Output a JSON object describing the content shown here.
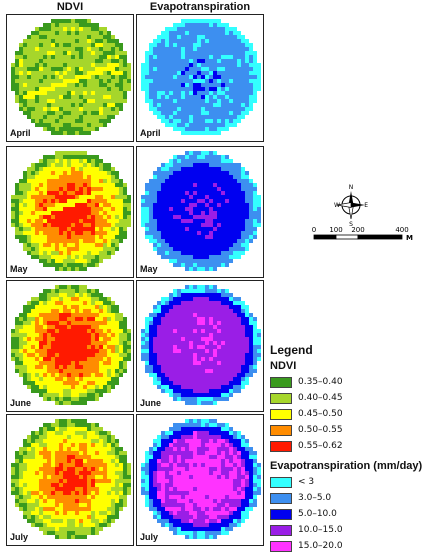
{
  "columns": {
    "ndvi": "NDVI",
    "et": "Evapotranspiration"
  },
  "months": [
    "April",
    "May",
    "June",
    "July"
  ],
  "compass": {
    "n": "N",
    "s": "S",
    "e": "E",
    "w": "W"
  },
  "scale_bar": {
    "ticks": [
      "0",
      "100",
      "200",
      "400"
    ],
    "unit": "M"
  },
  "legend": {
    "title": "Legend",
    "ndvi_title": "NDVI",
    "ndvi_classes": [
      {
        "label": "0.35–0.40",
        "color": "#3a9a1e"
      },
      {
        "label": "0.40–0.45",
        "color": "#a6d62b"
      },
      {
        "label": "0.45–0.50",
        "color": "#ffff00"
      },
      {
        "label": "0.50–0.55",
        "color": "#ff8c00"
      },
      {
        "label": "0.55–0.62",
        "color": "#ff1a00"
      }
    ],
    "et_title": "Evapotranspiration (mm/day)",
    "et_classes": [
      {
        "label": "< 3",
        "color": "#33ffff"
      },
      {
        "label": "3.0–5.0",
        "color": "#3d8ff0"
      },
      {
        "label": "5.0–10.0",
        "color": "#0000f0"
      },
      {
        "label": "10.0–15.0",
        "color": "#9a1ee6"
      },
      {
        "label": "15.0–20.0",
        "color": "#ff33ff"
      }
    ]
  }
}
